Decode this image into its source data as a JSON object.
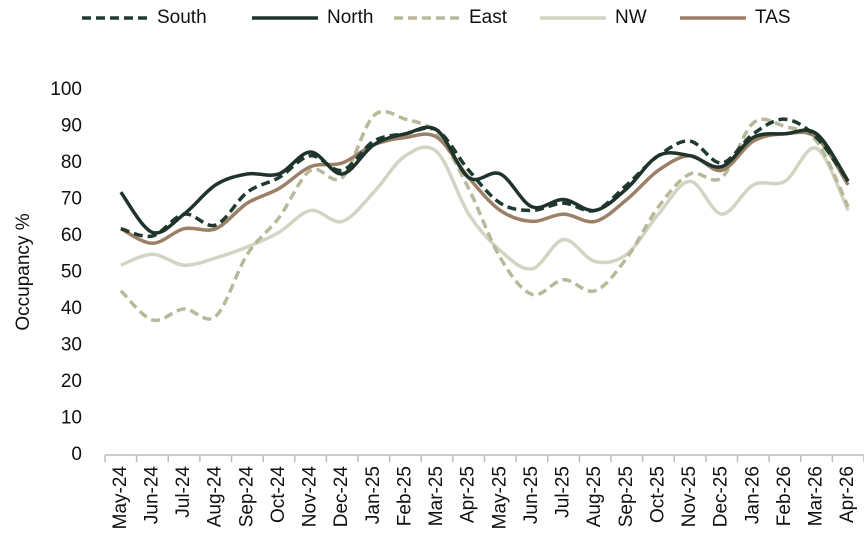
{
  "chart_data": {
    "type": "line",
    "y_label": "Occupancy %",
    "categories": [
      "May-24",
      "Jun-24",
      "Jul-24",
      "Aug-24",
      "Sep-24",
      "Oct-24",
      "Nov-24",
      "Dec-24",
      "Jan-25",
      "Feb-25",
      "Mar-25",
      "Apr-25",
      "May-25",
      "Jun-25",
      "Jul-25",
      "Aug-25",
      "Sep-25",
      "Oct-25",
      "Nov-25",
      "Dec-25",
      "Jan-26",
      "Feb-26",
      "Mar-26",
      "Apr-26"
    ],
    "series": [
      {
        "name": "South",
        "color": "#1f3a2e",
        "dashed": true,
        "values": [
          62,
          60,
          66,
          63,
          72,
          76,
          82,
          78,
          86,
          88,
          89,
          78,
          69,
          67,
          69,
          67,
          74,
          82,
          86,
          80,
          88,
          92,
          87,
          75
        ]
      },
      {
        "name": "North",
        "color": "#1e3329",
        "dashed": false,
        "values": [
          72,
          61,
          66,
          74,
          77,
          77,
          83,
          77,
          85,
          88,
          89,
          76,
          77,
          68,
          70,
          67,
          73,
          82,
          82,
          79,
          87,
          88,
          88,
          75
        ]
      },
      {
        "name": "East",
        "color": "#b9b89a",
        "dashed": true,
        "values": [
          45,
          37,
          40,
          38,
          55,
          65,
          78,
          76,
          93,
          92,
          88,
          73,
          54,
          44,
          48,
          45,
          54,
          68,
          77,
          76,
          91,
          90,
          86,
          68
        ]
      },
      {
        "name": "NW",
        "color": "#d4d4c4",
        "dashed": false,
        "values": [
          52,
          55,
          52,
          54,
          57,
          61,
          67,
          64,
          72,
          82,
          83,
          66,
          56,
          51,
          59,
          53,
          55,
          66,
          75,
          66,
          74,
          75,
          84,
          67
        ]
      },
      {
        "name": "TAS",
        "color": "#9b7f66",
        "dashed": false,
        "values": [
          62,
          58,
          62,
          62,
          69,
          73,
          79,
          80,
          85,
          87,
          87,
          76,
          67,
          64,
          66,
          64,
          70,
          78,
          82,
          78,
          86,
          88,
          87,
          74
        ]
      }
    ],
    "ylim": [
      0,
      100
    ],
    "yticks": [
      0,
      10,
      20,
      30,
      40,
      50,
      60,
      70,
      80,
      90,
      100
    ],
    "grid": false,
    "legend": "top"
  }
}
